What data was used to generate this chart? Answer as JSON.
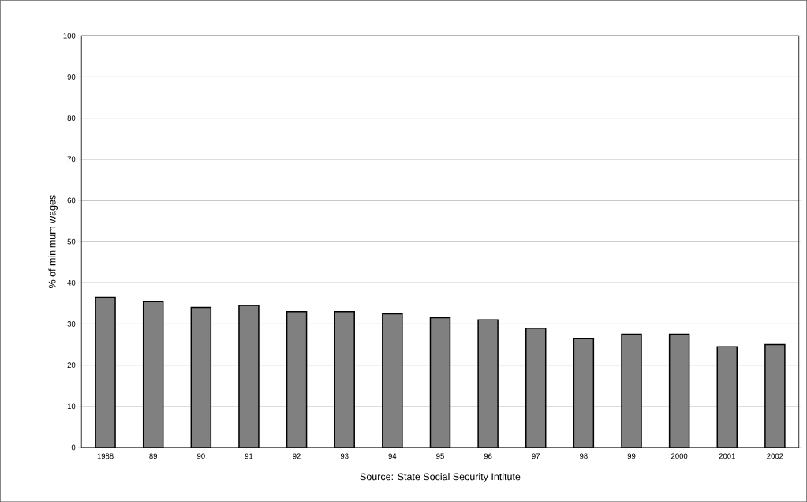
{
  "chart_data": {
    "type": "bar",
    "ylabel": "% of minimum wages",
    "xlabel": "Source: State Social Security Intitute",
    "categories": [
      "1988",
      "89",
      "90",
      "91",
      "92",
      "93",
      "94",
      "95",
      "96",
      "97",
      "98",
      "99",
      "2000",
      "2001",
      "2002"
    ],
    "values": [
      36.5,
      35.5,
      34,
      34.5,
      33,
      33,
      32.5,
      31.5,
      31,
      29,
      26.5,
      27.5,
      27.5,
      24.5,
      25
    ],
    "color": "#808080",
    "ylim": [
      0,
      100
    ],
    "yticks": [
      0,
      10,
      20,
      30,
      40,
      50,
      60,
      70,
      80,
      90,
      100
    ],
    "grid": "y"
  }
}
